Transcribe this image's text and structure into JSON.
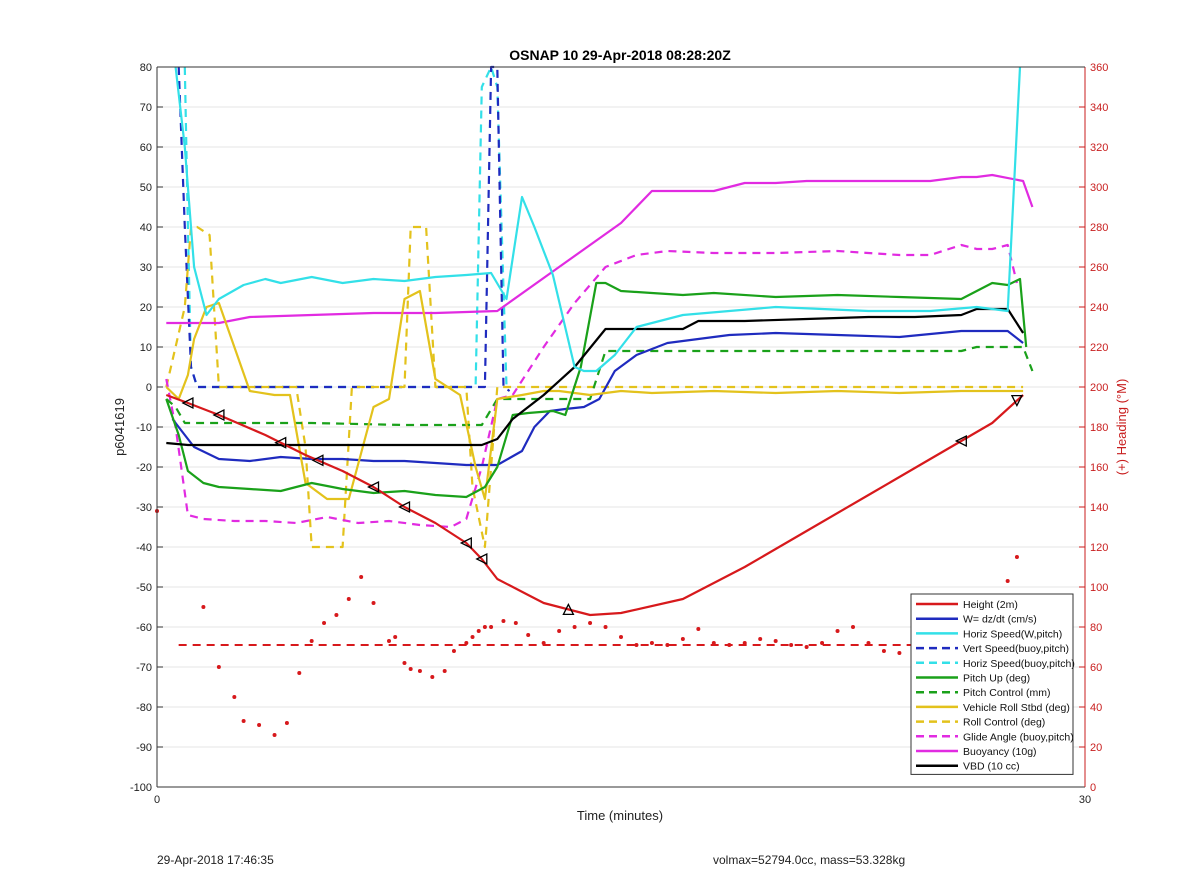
{
  "chart_data": {
    "type": "line",
    "title": "OSNAP 10 29-Apr-2018 08:28:20Z",
    "xlabel": "Time (minutes)",
    "ylabel": "p6041619",
    "y2label": "(+) Heading (°M)",
    "xlim": [
      0,
      30
    ],
    "ylim": [
      -100,
      80
    ],
    "y2lim": [
      0,
      360
    ],
    "xticks": [
      "0",
      "30"
    ],
    "yticks": [
      "80",
      "70",
      "60",
      "50",
      "40",
      "30",
      "20",
      "10",
      "0",
      "-10",
      "-20",
      "-30",
      "-40",
      "-50",
      "-60",
      "-70",
      "-80",
      "-90",
      "-100"
    ],
    "y2ticks": [
      "360",
      "340",
      "320",
      "300",
      "280",
      "260",
      "240",
      "220",
      "200",
      "180",
      "160",
      "140",
      "120",
      "100",
      "80",
      "60",
      "40",
      "20",
      "0"
    ],
    "grid": "y",
    "legend_position": "bottom-right",
    "colors": {
      "height": "#d7191c",
      "w": "#1f2bbf",
      "horiz_w": "#33e0e8",
      "vert_buoy": "#1f2bbf",
      "horiz_buoy": "#33e0e8",
      "pitch": "#1aa11a",
      "pitch_ctrl": "#1aa11a",
      "roll": "#e3c21c",
      "roll_ctrl": "#e3c21c",
      "glide": "#e12be1",
      "buoy": "#e12be1",
      "vbd": "#000000",
      "heading": "#d7191c",
      "axis_right": "#c81e1e"
    },
    "series": [
      {
        "name": "Height (2m)",
        "style": "solid",
        "color_key": "height",
        "x": [
          0.3,
          1.0,
          2.0,
          3.5,
          4.8,
          6.0,
          7.0,
          8.0,
          9.0,
          10.0,
          10.5,
          11.0,
          12.0,
          12.5,
          13.0,
          13.5,
          14.0,
          15.0,
          17.0,
          19.0,
          21.0,
          23.0,
          25.0,
          27.0,
          28.0
        ],
        "y": [
          -2,
          -4,
          -7,
          -12,
          -17,
          -21,
          -25,
          -30,
          -34,
          -39,
          -43,
          -48,
          -52,
          -54,
          -55,
          -56,
          -57,
          -56.5,
          -53,
          -45,
          -36,
          -27,
          -18,
          -9,
          -2
        ]
      },
      {
        "name": "W= dz/dt (cm/s)",
        "style": "solid",
        "color_key": "w",
        "x": [
          0.5,
          0.8,
          1.2,
          2.0,
          3.0,
          4.0,
          5.0,
          6.0,
          7.0,
          8.0,
          9.0,
          10.0,
          11.0,
          11.8,
          12.2,
          12.7,
          13.2,
          13.8,
          14.3,
          14.8,
          15.5,
          16.5,
          17.5,
          18.5,
          20.0,
          22.0,
          24.0,
          26.0,
          27.5,
          28.0
        ],
        "y": [
          -8,
          -11,
          -15,
          -18,
          -18.5,
          -17.5,
          -18,
          -18,
          -18.5,
          -18.5,
          -19,
          -19.5,
          -19.5,
          -16,
          -10,
          -6,
          -5.5,
          -5,
          -3,
          4,
          8,
          11,
          12,
          13,
          13.5,
          13,
          12.5,
          14,
          14,
          11
        ]
      },
      {
        "name": "Horiz Speed(W,pitch)",
        "style": "solid",
        "color_key": "horiz_w",
        "x": [
          0.6,
          0.9,
          1.2,
          1.6,
          2.0,
          2.8,
          3.5,
          4.0,
          5.0,
          6.0,
          7.0,
          8.0,
          9.0,
          10.0,
          10.8,
          11.3,
          11.8,
          12.2,
          12.8,
          13.5,
          13.8,
          14.2,
          14.8,
          15.5,
          17.0,
          18.5,
          20.0,
          21.5,
          23.0,
          25.0,
          26.5,
          27.5,
          27.9
        ],
        "y": [
          80,
          60,
          30,
          18,
          22,
          25.5,
          27,
          26,
          27.5,
          26,
          27,
          26.5,
          27.5,
          28,
          28.5,
          22,
          47.5,
          40,
          28,
          5,
          4,
          4,
          8,
          15,
          18,
          19,
          20,
          19.5,
          19,
          19,
          20,
          19,
          80
        ]
      },
      {
        "name": "Vert Speed(buoy,pitch)",
        "style": "dashed",
        "color_key": "vert_buoy",
        "x": [
          0.7,
          0.9,
          1.1,
          1.3,
          10.3,
          10.6,
          10.8,
          11.0,
          11.2,
          11.4
        ],
        "y": [
          80,
          40,
          5,
          0,
          0,
          0,
          80,
          80,
          0,
          -1
        ]
      },
      {
        "name": "Horiz Speed(buoy,pitch)",
        "style": "dashed",
        "color_key": "horiz_buoy",
        "x": [
          0.9,
          1.0,
          1.1,
          1.3,
          2.0,
          10.0,
          10.3,
          10.5,
          10.8,
          11.0,
          11.3
        ],
        "y": [
          80,
          40,
          5,
          0,
          0,
          0,
          0,
          75,
          80,
          75,
          0
        ]
      },
      {
        "name": "Pitch Up (deg)",
        "style": "solid",
        "color_key": "pitch",
        "x": [
          0.3,
          0.7,
          1.0,
          1.5,
          2.0,
          3.0,
          4.0,
          5.0,
          6.0,
          7.0,
          8.0,
          9.0,
          10.0,
          10.6,
          11.0,
          11.5,
          12.0,
          12.8,
          13.2,
          13.7,
          14.2,
          14.5,
          15.0,
          16.0,
          17.0,
          18.0,
          20.0,
          22.0,
          24.0,
          26.0,
          27.0,
          27.5,
          27.9,
          28.1
        ],
        "y": [
          -3,
          -12,
          -21,
          -24,
          -25,
          -25.5,
          -26,
          -24,
          -25.5,
          -26.5,
          -26,
          -27,
          -27.5,
          -25,
          -20,
          -7,
          -6.5,
          -6,
          -7,
          5,
          26,
          26,
          24,
          23.5,
          23,
          23.5,
          22.5,
          23,
          22.5,
          22,
          26,
          25.5,
          27,
          10
        ]
      },
      {
        "name": "Pitch Control (mm)",
        "style": "dashed",
        "color_key": "pitch_ctrl",
        "x": [
          0.3,
          0.6,
          0.9,
          1.2,
          5.0,
          8.0,
          10.0,
          10.5,
          11.0,
          11.5,
          12.0,
          14.0,
          14.5,
          20.0,
          25.0,
          26.0,
          26.5,
          27.5,
          28.0,
          28.3
        ],
        "y": [
          -3,
          -5,
          -9,
          -9,
          -9,
          -9.5,
          -9.5,
          -9.5,
          -3,
          -3,
          -3,
          -3,
          9,
          9,
          9,
          9,
          10,
          10,
          10,
          4
        ]
      },
      {
        "name": "Vehicle Roll Stbd (deg)",
        "style": "solid",
        "color_key": "roll",
        "x": [
          0.3,
          0.7,
          1.0,
          1.2,
          1.6,
          2.0,
          3.0,
          3.8,
          4.3,
          4.8,
          5.5,
          6.2,
          7.0,
          7.5,
          8.0,
          8.5,
          9.0,
          9.8,
          10.3,
          10.6,
          11.0,
          11.8,
          12.5,
          13.0,
          14.0,
          15.0,
          16.0,
          18.0,
          20.0,
          22.0,
          24.0,
          26.0,
          28.0
        ],
        "y": [
          0,
          -3,
          3,
          12,
          20,
          21,
          -1,
          -2,
          -2,
          -24,
          -28,
          -28,
          -5,
          -3,
          22,
          24,
          2,
          -2,
          -20,
          -28,
          -3,
          -2,
          -1,
          -1,
          -2,
          -1,
          -1.5,
          -1,
          -1.5,
          -1,
          -1.5,
          -1,
          -1
        ]
      },
      {
        "name": "Roll Control (deg)",
        "style": "dashed",
        "color_key": "roll_ctrl",
        "x": [
          0.3,
          0.9,
          1.1,
          1.3,
          1.7,
          2.0,
          4.5,
          4.8,
          5.0,
          6.0,
          6.3,
          8.0,
          8.2,
          8.7,
          9.0,
          9.8,
          10.0,
          10.2,
          10.6,
          11.0,
          14.0,
          20.0,
          28.0
        ],
        "y": [
          0,
          20,
          40,
          40,
          38,
          0,
          0,
          -15,
          -40,
          -40,
          0,
          0,
          40,
          40,
          0,
          0,
          0,
          -25,
          -40,
          0,
          0,
          0,
          0
        ]
      },
      {
        "name": "Glide Angle (buoy,pitch)",
        "style": "dashed",
        "color_key": "glide",
        "x": [
          0.3,
          0.6,
          1.0,
          1.5,
          2.5,
          3.5,
          4.5,
          5.5,
          6.5,
          7.5,
          8.5,
          9.5,
          10.0,
          10.5,
          11.0,
          11.5,
          12.5,
          13.5,
          14.5,
          15.5,
          16.5,
          18.0,
          20.0,
          22.0,
          24.0,
          25.0,
          26.0,
          26.5,
          27.0,
          27.5,
          27.8
        ],
        "y": [
          2,
          -10,
          -32,
          -33,
          -33.5,
          -33.5,
          -34,
          -32.5,
          -34,
          -33.5,
          -34.5,
          -35,
          -33,
          -20,
          -3,
          -2,
          10,
          21,
          30,
          33,
          34,
          33.5,
          33.5,
          34,
          33,
          33,
          35.5,
          34.5,
          34.5,
          35.5,
          26
        ]
      },
      {
        "name": "Buoyancy (10g)",
        "style": "solid",
        "color_key": "buoy",
        "x": [
          0.3,
          1.0,
          2.0,
          3.0,
          5.0,
          7.0,
          9.0,
          11.0,
          13.0,
          15.0,
          16.0,
          17.0,
          18.0,
          19.0,
          20.0,
          21.0,
          22.0,
          23.0,
          24.0,
          25.0,
          26.0,
          26.5,
          27.0,
          28.0,
          28.3
        ],
        "y": [
          16,
          16,
          16,
          17.5,
          18,
          18.5,
          18.5,
          19,
          30,
          41,
          49,
          49,
          49,
          51,
          51,
          51.5,
          51.5,
          51.5,
          51.5,
          51.5,
          52.5,
          52.5,
          53,
          51.5,
          45
        ]
      },
      {
        "name": "VBD (10 cc)",
        "style": "solid",
        "color_key": "vbd",
        "x": [
          0.3,
          1.0,
          3.0,
          5.0,
          7.0,
          9.0,
          10.5,
          11.0,
          11.5,
          12.5,
          13.5,
          14.5,
          15.5,
          17.0,
          17.5,
          19.0,
          21.0,
          23.0,
          24.5,
          26.0,
          26.5,
          27.5,
          28.0
        ],
        "y": [
          -14,
          -14.5,
          -14.5,
          -14.5,
          -14.5,
          -14.5,
          -14.5,
          -13,
          -8,
          -2,
          5,
          14.5,
          14.5,
          14.5,
          16.5,
          16.5,
          17,
          17.5,
          17.5,
          18,
          19.5,
          19.5,
          13.5
        ]
      }
    ],
    "reference_line": {
      "style": "dashed",
      "color_key": "height",
      "y": -64.5
    },
    "height_markers": {
      "up_x": [
        13.3
      ],
      "left_x": [
        1.0,
        2.0,
        4.0,
        5.2,
        7.0,
        8.0,
        10.0,
        10.5,
        26.0
      ],
      "down_x": [
        27.8
      ]
    },
    "heading_points": {
      "x": [
        0.0,
        1.5,
        2.0,
        2.5,
        2.8,
        3.3,
        3.8,
        4.2,
        4.6,
        5.0,
        5.4,
        5.8,
        6.2,
        6.6,
        7.0,
        7.5,
        7.7,
        8.0,
        8.2,
        8.5,
        8.9,
        9.3,
        9.6,
        10.0,
        10.2,
        10.4,
        10.6,
        10.8,
        11.2,
        11.6,
        12.0,
        12.5,
        13.0,
        13.5,
        14.0,
        14.5,
        15.0,
        15.5,
        16.0,
        16.5,
        17.0,
        17.5,
        18.0,
        18.5,
        19.0,
        19.5,
        20.0,
        20.5,
        21.0,
        21.5,
        22.0,
        22.5,
        23.0,
        23.5,
        24.0,
        24.5,
        25.0,
        25.5,
        26.0,
        26.5,
        27.0,
        27.5,
        27.8
      ],
      "y": [
        138,
        90,
        60,
        45,
        33,
        31,
        26,
        32,
        57,
        73,
        82,
        86,
        94,
        105,
        92,
        73,
        75,
        62,
        59,
        58,
        55,
        58,
        68,
        72,
        75,
        78,
        80,
        80,
        83,
        82,
        76,
        72,
        78,
        80,
        82,
        80,
        75,
        71,
        72,
        71,
        74,
        79,
        72,
        71,
        72,
        74,
        73,
        71,
        70,
        72,
        78,
        80,
        72,
        68,
        67,
        65,
        66,
        67,
        73,
        76,
        80,
        103,
        115
      ]
    },
    "legend": [
      "Height (2m)",
      "W= dz/dt (cm/s)",
      "Horiz Speed(W,pitch)",
      "Vert Speed(buoy,pitch)",
      "Horiz Speed(buoy,pitch)",
      "Pitch Up (deg)",
      "Pitch Control (mm)",
      "Vehicle Roll Stbd (deg)",
      "Roll Control (deg)",
      "Glide Angle (buoy,pitch)",
      "Buoyancy (10g)",
      "VBD (10 cc)"
    ]
  },
  "footer": {
    "left": "29-Apr-2018 17:46:35",
    "right": "volmax=52794.0cc, mass=53.328kg"
  }
}
